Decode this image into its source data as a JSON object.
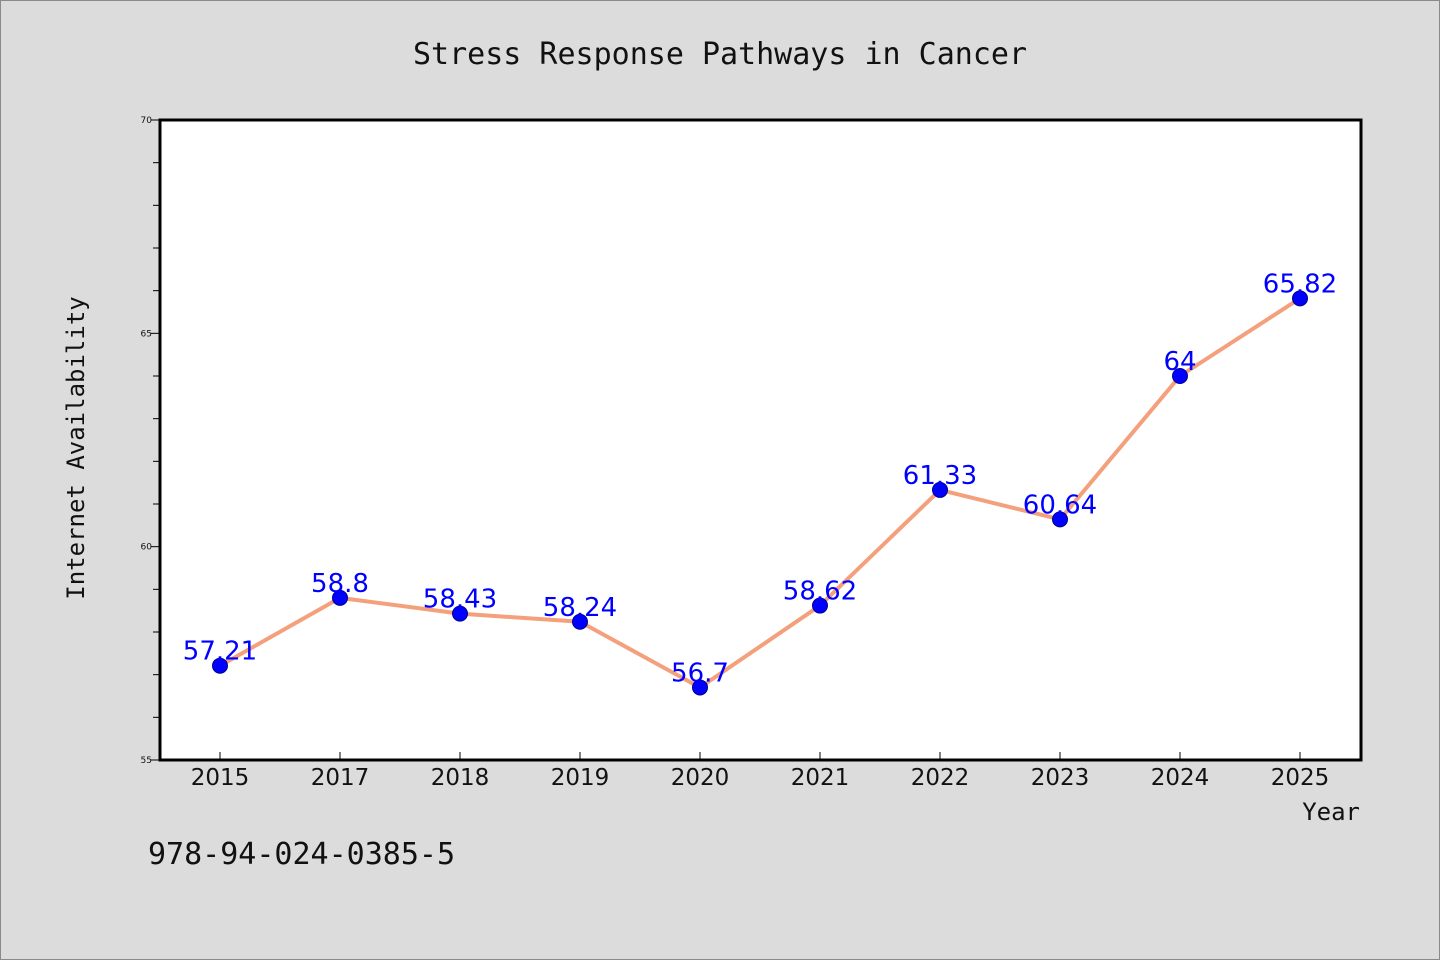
{
  "chart_data": {
    "type": "line",
    "title": "Stress Response Pathways in Cancer",
    "xlabel": "Year",
    "ylabel": "Internet Availability",
    "categories": [
      "2015",
      "2017",
      "2018",
      "2019",
      "2020",
      "2021",
      "2022",
      "2023",
      "2024",
      "2025"
    ],
    "values": [
      57.21,
      58.8,
      58.43,
      58.24,
      56.7,
      58.62,
      61.33,
      60.64,
      64,
      65.82
    ],
    "data_labels": [
      "57.21",
      "58.8",
      "58.43",
      "58.24",
      "56.7",
      "58.62",
      "61.33",
      "60.64",
      "64",
      "65.82"
    ],
    "ylim": [
      55,
      70
    ],
    "y_major_ticks": [
      55,
      60,
      65,
      70
    ],
    "y_minor_step": 1,
    "grid": false,
    "legend": "none",
    "line_color": "#f4a07c",
    "marker_color": "#0000ff",
    "label_color": "#0000ff",
    "plot_background": "#ffffff",
    "figure_background": "#dcdcdc"
  },
  "annotation": {
    "isbn": "978-94-024-0385-5"
  }
}
